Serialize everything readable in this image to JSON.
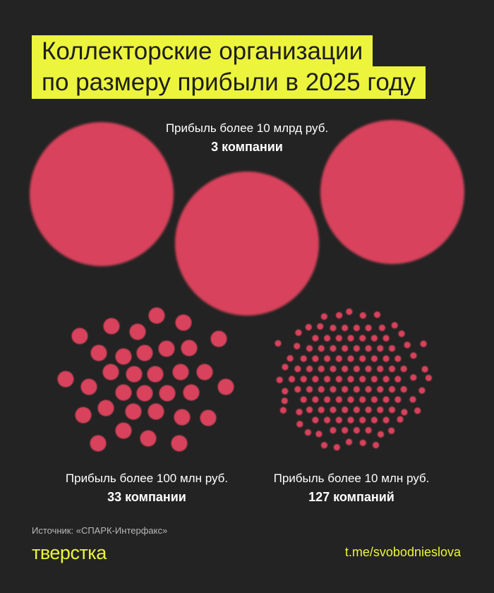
{
  "title": {
    "line1": "Коллекторские организации",
    "line2": "по размеру прибыли в 2025 году"
  },
  "groups": [
    {
      "label": "Прибыль более 10 млрд руб.",
      "count_label": "3 компании"
    },
    {
      "label": "Прибыль более 100 млн руб.",
      "count_label": "33 компании"
    },
    {
      "label": "Прибыль более 10 млн руб.",
      "count_label": "127 компаний"
    }
  ],
  "chart_data": {
    "type": "unit",
    "categories": [
      "Прибыль более 10 млрд руб.",
      "Прибыль более 100 млн руб.",
      "Прибыль более 10 млн руб."
    ],
    "values": [
      3,
      33,
      127
    ],
    "colors": {
      "dot": "#d9435c",
      "background": "#232323",
      "accent": "#ecf53c"
    }
  },
  "footer": {
    "source": "Источник: «СПАРК-Интерфакс»",
    "logo": "тверстка",
    "link": "t.me/svobodnieslova"
  }
}
